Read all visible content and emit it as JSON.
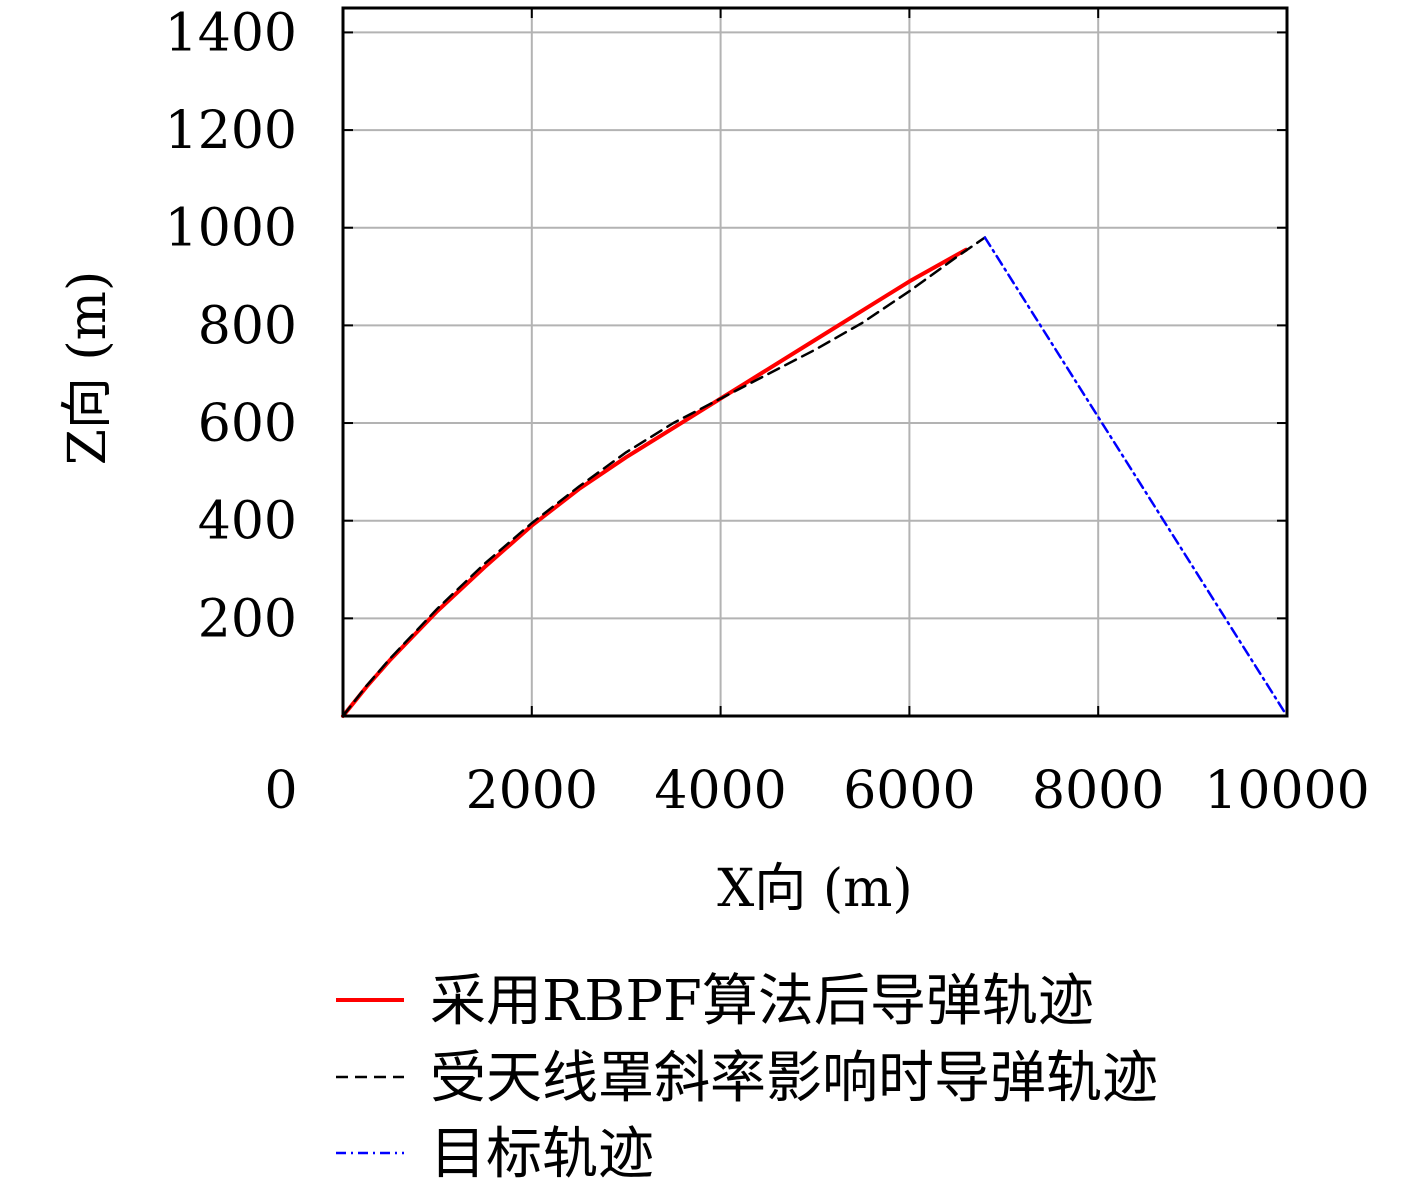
{
  "chart_data": {
    "type": "line",
    "title": "",
    "xlabel": "X向 (m)",
    "ylabel": "Z向 (m)",
    "xlim": [
      0,
      10000
    ],
    "ylim": [
      0,
      1450
    ],
    "xticks": [
      "0",
      "2000",
      "4000",
      "6000",
      "8000",
      "10000"
    ],
    "yticks": [
      "200",
      "400",
      "600",
      "800",
      "1000",
      "1200",
      "1400"
    ],
    "grid": true,
    "legend_position": "bottom",
    "series": [
      {
        "name": "采用RBPF算法后导弹轨迹",
        "color": "#ff0000",
        "style": "solid",
        "x": [
          0,
          250,
          500,
          1000,
          1500,
          2000,
          2500,
          3000,
          3500,
          4000,
          4500,
          5000,
          5500,
          6000,
          6600
        ],
        "y": [
          0,
          60,
          115,
          215,
          305,
          390,
          465,
          530,
          590,
          650,
          710,
          770,
          830,
          890,
          955
        ]
      },
      {
        "name": "受天线罩斜率影响时导弹轨迹",
        "color": "#000000",
        "style": "dashed",
        "x": [
          0,
          250,
          500,
          1000,
          1500,
          2000,
          2500,
          3000,
          3500,
          4000,
          4500,
          5000,
          5500,
          6000,
          6500,
          6800
        ],
        "y": [
          0,
          62,
          118,
          220,
          312,
          395,
          470,
          540,
          600,
          650,
          700,
          750,
          805,
          870,
          940,
          980
        ]
      },
      {
        "name": "目标轨迹",
        "color": "#0000ff",
        "style": "dashdot",
        "x": [
          6800,
          10000
        ],
        "y": [
          980,
          0
        ]
      }
    ]
  },
  "icons": {
    "legend_solid": "red-solid-line-icon",
    "legend_dashed": "black-dashed-line-icon",
    "legend_dashdot": "blue-dashdot-line-icon"
  }
}
